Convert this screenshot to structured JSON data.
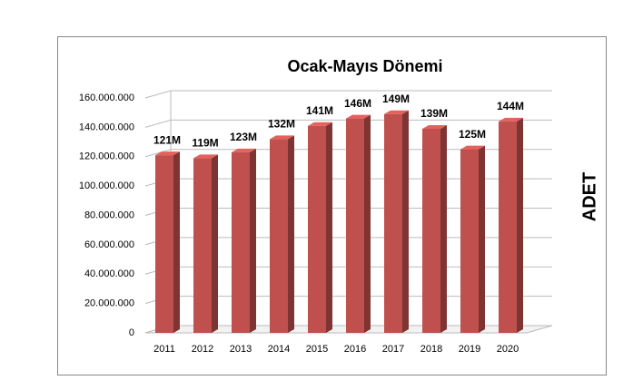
{
  "chart_data": {
    "type": "bar3d",
    "title": "Ocak-Mayıs Dönemi",
    "y_label": "ADET",
    "categories": [
      "2011",
      "2012",
      "2013",
      "2014",
      "2015",
      "2016",
      "2017",
      "2018",
      "2019",
      "2020"
    ],
    "values": [
      121000000,
      119000000,
      123000000,
      132000000,
      141000000,
      146000000,
      149000000,
      139000000,
      125000000,
      144000000
    ],
    "value_labels": [
      "121M",
      "119M",
      "123M",
      "132M",
      "141M",
      "146M",
      "149M",
      "139M",
      "125M",
      "144M"
    ],
    "color": "#c0504d",
    "ylim": [
      0,
      160000000
    ],
    "yticks": [
      0,
      {
        "value": 20000000,
        "label": "20.000.000"
      },
      {
        "value": 40000000,
        "label": "40.000.000"
      },
      {
        "value": 60000000,
        "label": "60.000.000"
      },
      {
        "value": 80000000,
        "label": "80.000.000"
      },
      {
        "value": 100000000,
        "label": "100.000.000"
      },
      {
        "value": 120000000,
        "label": "120.000.000"
      },
      {
        "value": 140000000,
        "label": "140.000.000"
      },
      {
        "value": 160000000,
        "label": "160.000.000"
      }
    ],
    "grid": true
  }
}
